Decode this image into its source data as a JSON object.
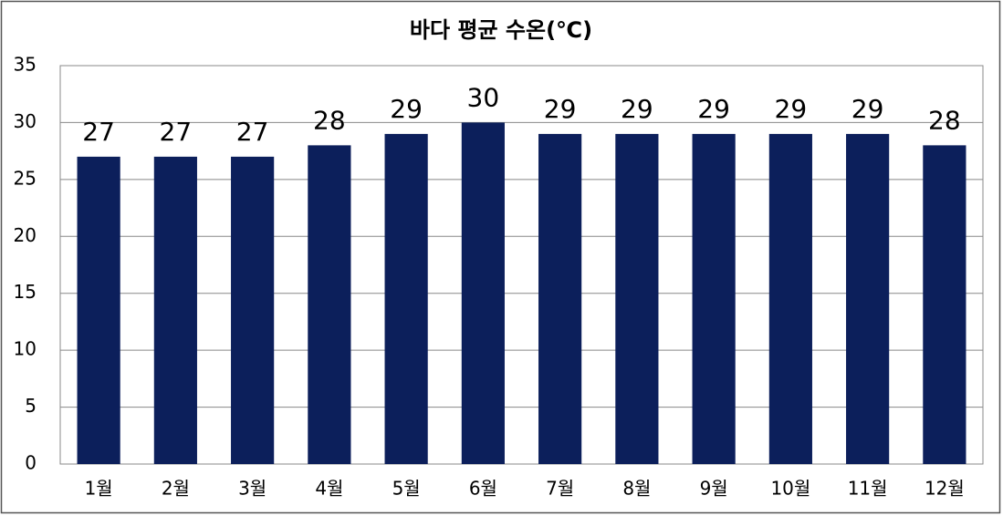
{
  "chart_data": {
    "type": "bar",
    "title": "바다 평균 수온(℃)",
    "categories": [
      "1월",
      "2월",
      "3월",
      "4월",
      "5월",
      "6월",
      "7월",
      "8월",
      "9월",
      "10월",
      "11월",
      "12월"
    ],
    "values": [
      27,
      27,
      27,
      28,
      29,
      30,
      29,
      29,
      29,
      29,
      29,
      28
    ],
    "color": "#0c1f5b",
    "ylim": [
      0,
      35
    ],
    "yticks": [
      0,
      5,
      10,
      15,
      20,
      25,
      30,
      35
    ],
    "grid": true,
    "value_labels_shown": true
  }
}
